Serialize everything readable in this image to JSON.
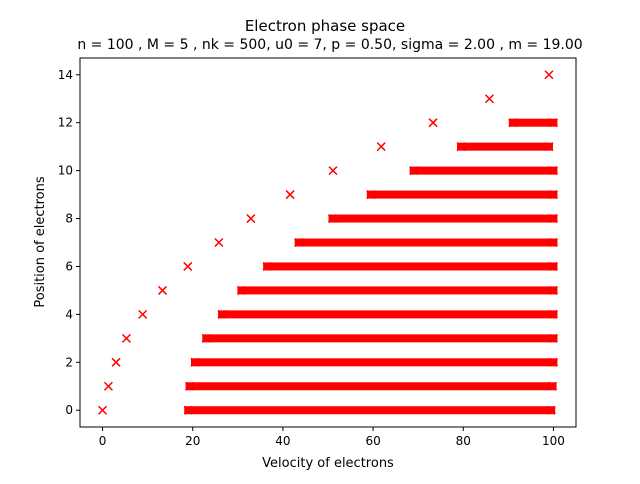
{
  "chart_data": {
    "type": "scatter",
    "title": "Electron phase space",
    "subtitle": "n = 100 , M = 5 , nk = 500, u0 = 7, p = 0.50, sigma = 2.00 , m = 19.00",
    "xlabel": "Velocity of electrons",
    "ylabel": "Position of electrons",
    "xlim": [
      -5,
      105
    ],
    "ylim": [
      -0.7,
      14.7
    ],
    "xticks": [
      0,
      20,
      40,
      60,
      80,
      100
    ],
    "yticks": [
      0,
      2,
      4,
      6,
      8,
      10,
      12,
      14
    ],
    "grid": false,
    "marker": "x",
    "color": "#ff0000",
    "isolated_points": [
      {
        "x": 0.0,
        "y": 0
      },
      {
        "x": 1.3,
        "y": 1
      },
      {
        "x": 3.0,
        "y": 2
      },
      {
        "x": 5.3,
        "y": 3
      },
      {
        "x": 8.9,
        "y": 4
      },
      {
        "x": 13.3,
        "y": 5
      },
      {
        "x": 18.9,
        "y": 6
      },
      {
        "x": 25.8,
        "y": 7
      },
      {
        "x": 32.9,
        "y": 8
      },
      {
        "x": 41.6,
        "y": 9
      },
      {
        "x": 51.1,
        "y": 10
      },
      {
        "x": 61.8,
        "y": 11
      },
      {
        "x": 73.3,
        "y": 12
      },
      {
        "x": 85.8,
        "y": 13
      },
      {
        "x": 99.0,
        "y": 14
      }
    ],
    "dense_rows": [
      {
        "y": 0,
        "x_min": 19.0,
        "x_max": 99.5
      },
      {
        "y": 1,
        "x_min": 19.3,
        "x_max": 99.8
      },
      {
        "y": 2,
        "x_min": 20.5,
        "x_max": 100
      },
      {
        "y": 3,
        "x_min": 23.0,
        "x_max": 100
      },
      {
        "y": 4,
        "x_min": 26.5,
        "x_max": 100
      },
      {
        "y": 5,
        "x_min": 30.8,
        "x_max": 100
      },
      {
        "y": 6,
        "x_min": 36.5,
        "x_max": 100
      },
      {
        "y": 7,
        "x_min": 43.5,
        "x_max": 100
      },
      {
        "y": 8,
        "x_min": 51.0,
        "x_max": 100
      },
      {
        "y": 9,
        "x_min": 59.5,
        "x_max": 100
      },
      {
        "y": 10,
        "x_min": 69.0,
        "x_max": 100
      },
      {
        "y": 11,
        "x_min": 79.5,
        "x_max": 99.0
      },
      {
        "y": 12,
        "x_min": 91.0,
        "x_max": 100
      }
    ]
  }
}
